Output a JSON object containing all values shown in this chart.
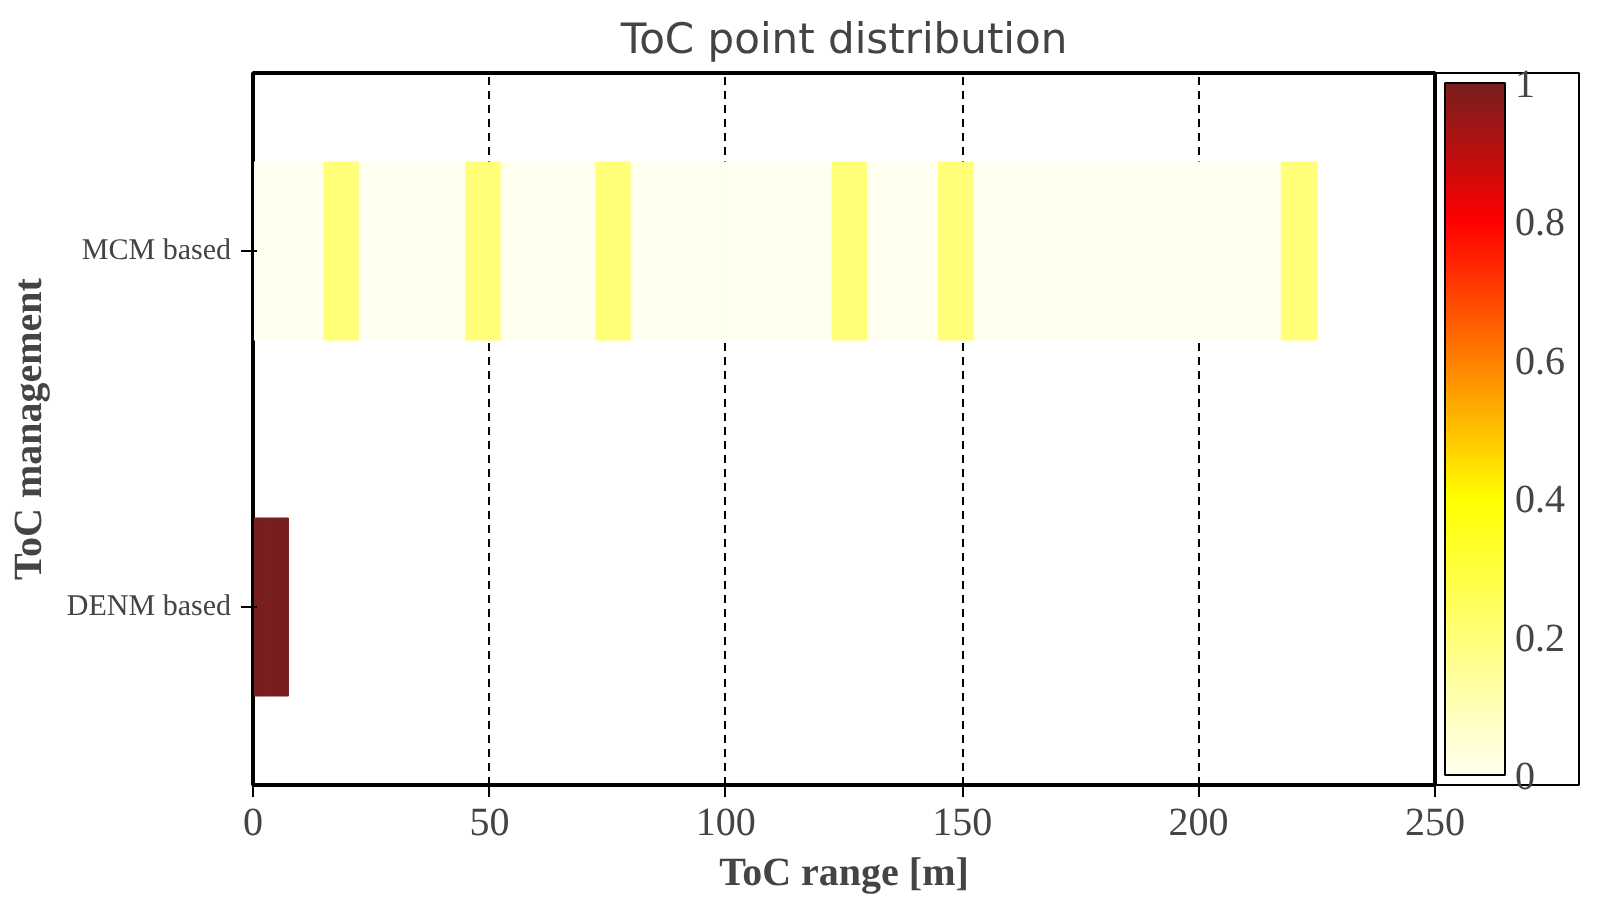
{
  "chart_data": {
    "type": "heatmap",
    "title": "ToC point distribution",
    "xlabel": "ToC range [m]",
    "ylabel": "ToC management",
    "x": [
      1.25,
      3.75,
      6.25,
      8.75,
      11.25,
      13.75,
      16.25,
      18.75,
      21.25,
      23.75,
      26.25,
      28.75,
      31.25,
      33.75,
      36.25,
      38.75,
      41.25,
      43.75,
      46.25,
      48.75,
      51.25,
      53.75,
      56.25,
      58.75,
      61.25,
      63.75,
      66.25,
      68.75,
      71.25,
      73.75,
      76.25,
      78.75,
      81.25,
      83.75,
      86.25,
      88.75,
      91.25,
      93.75,
      96.25,
      98.75,
      101.25,
      103.75,
      106.25,
      108.75,
      111.25,
      113.75,
      116.25,
      118.75,
      121.25,
      123.75,
      126.25,
      128.75,
      131.25,
      133.75,
      136.25,
      138.75,
      141.25,
      143.75,
      146.25,
      148.75,
      151.25,
      153.75,
      156.25,
      158.75,
      161.25,
      163.75,
      166.25,
      168.75,
      171.25,
      173.75,
      176.25,
      178.75,
      181.25,
      183.75,
      186.25,
      188.75,
      191.25,
      193.75,
      196.25,
      198.75,
      201.25,
      203.75,
      206.25,
      208.75,
      211.25,
      213.75,
      216.25,
      218.75,
      221.25,
      223.75
    ],
    "y_categories": [
      "MCM based",
      "DENM based"
    ],
    "cells": [
      [
        0,
        0,
        0,
        0,
        0,
        0,
        0.2,
        0.2,
        0.2,
        0,
        0,
        0,
        0,
        0,
        0,
        0,
        0,
        0,
        0.2,
        0.2,
        0.2,
        0,
        0,
        0,
        0,
        0,
        0,
        0,
        0,
        0.2,
        0.2,
        0.2,
        0,
        0,
        0,
        0,
        0,
        0,
        0,
        0,
        0,
        0,
        0,
        0,
        0,
        0,
        0,
        0,
        0,
        0.2,
        0.2,
        0.2,
        0,
        0,
        0,
        0,
        0,
        0,
        0.2,
        0.2,
        0.2,
        0,
        0,
        0,
        0,
        0,
        0,
        0,
        0,
        0,
        0,
        0,
        0,
        0,
        0,
        0,
        0,
        0,
        0,
        0,
        0,
        0,
        0,
        0,
        0,
        0,
        0,
        0.2,
        0.2,
        0.2
      ],
      [
        1,
        1,
        1,
        null,
        null,
        null,
        null,
        null,
        null,
        null,
        null,
        null,
        null,
        null,
        null,
        null,
        null,
        null,
        null,
        null,
        null,
        null,
        null,
        null,
        null,
        null,
        null,
        null,
        null,
        null,
        null,
        null,
        null,
        null,
        null,
        null,
        null,
        null,
        null,
        null,
        null,
        null,
        null,
        null,
        null,
        null,
        null,
        null,
        null,
        null,
        null,
        null,
        null,
        null,
        null,
        null,
        null,
        null,
        null,
        null,
        null,
        null,
        null,
        null,
        null,
        null,
        null,
        null,
        null,
        null,
        null,
        null,
        null,
        null,
        null,
        null,
        null,
        null,
        null,
        null,
        null,
        null,
        null,
        null,
        null,
        null,
        null,
        null,
        null,
        null
      ]
    ],
    "xlim": [
      0,
      250
    ],
    "xticks": [
      0,
      50,
      100,
      150,
      200,
      250
    ],
    "clim": [
      0,
      1
    ],
    "cticks": [
      0,
      0.2,
      0.4,
      0.6,
      0.8,
      1
    ],
    "grid": "x"
  }
}
